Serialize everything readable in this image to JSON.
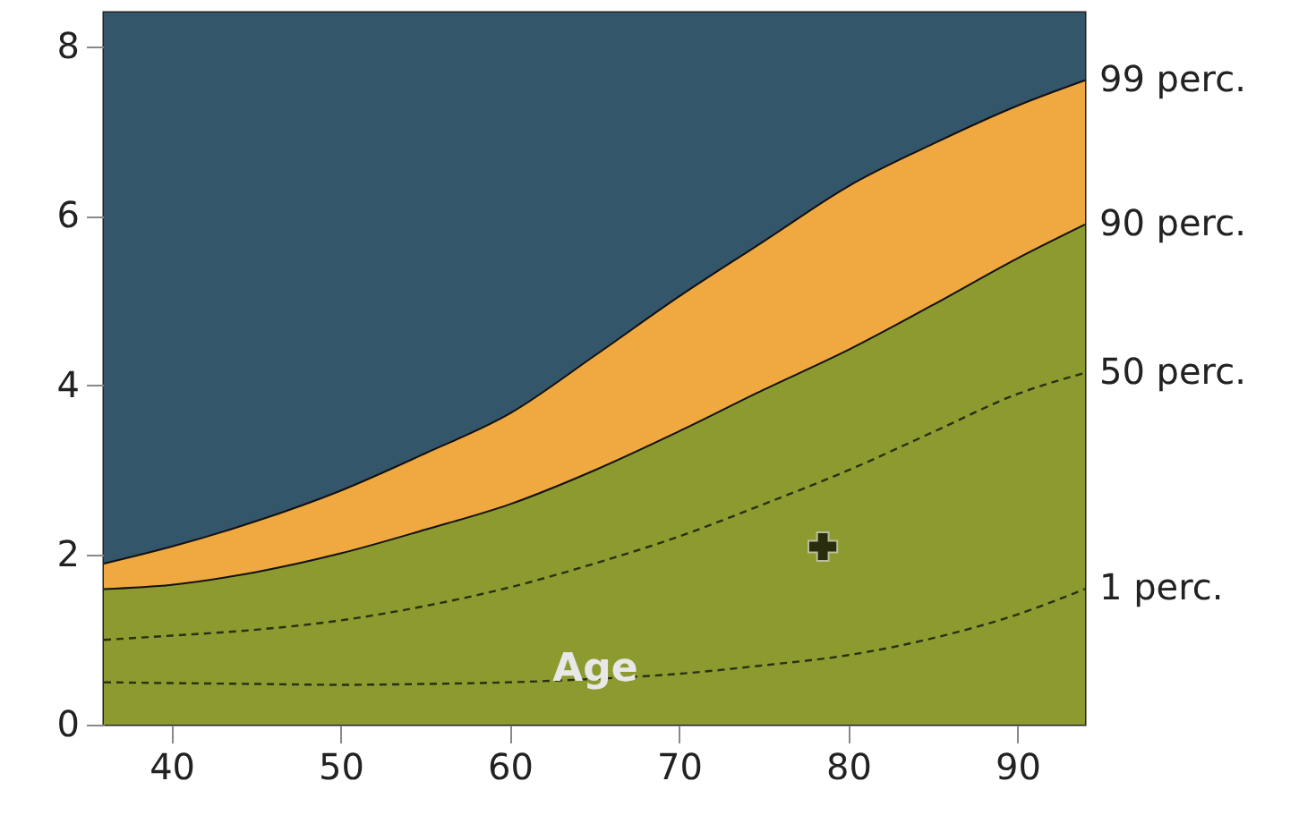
{
  "chart_data": {
    "type": "area",
    "xlabel": "Age",
    "x": [
      36,
      40,
      45,
      50,
      55,
      60,
      65,
      70,
      75,
      80,
      85,
      90,
      94
    ],
    "xlim": [
      36,
      94
    ],
    "ylim": [
      0,
      8.4
    ],
    "xticks": [
      40,
      50,
      60,
      70,
      80,
      90
    ],
    "yticks": [
      0,
      2,
      4,
      6,
      8
    ],
    "grid": false,
    "legend": false,
    "bands": [
      {
        "axis": "y",
        "from": 0,
        "to": 8.4,
        "color": "#33566b"
      }
    ],
    "series": [
      {
        "name": "99 perc.",
        "color": "#f0a840",
        "values": [
          1.9,
          2.1,
          2.4,
          2.76,
          3.2,
          3.67,
          4.35,
          5.05,
          5.7,
          6.35,
          6.85,
          7.3,
          7.6
        ]
      },
      {
        "name": "90 perc.",
        "color": "#8c9a30",
        "values": [
          1.6,
          1.65,
          1.8,
          2.02,
          2.3,
          2.6,
          3.0,
          3.46,
          3.95,
          4.42,
          4.95,
          5.5,
          5.9
        ]
      },
      {
        "name": "50 perc.",
        "type": "line",
        "line_style": "dashed",
        "color": "#2a3010",
        "values": [
          1.0,
          1.05,
          1.12,
          1.23,
          1.4,
          1.62,
          1.9,
          2.22,
          2.6,
          3.0,
          3.45,
          3.9,
          4.15
        ]
      },
      {
        "name": "1 perc.",
        "type": "line",
        "line_style": "dashed",
        "color": "#2a3010",
        "values": [
          0.5,
          0.49,
          0.48,
          0.47,
          0.48,
          0.5,
          0.54,
          0.6,
          0.7,
          0.82,
          1.02,
          1.3,
          1.6
        ]
      },
      {
        "type": "scatter",
        "marker": "cross",
        "color": "#000000",
        "x": [
          78.5
        ],
        "values": [
          2.1
        ]
      }
    ]
  }
}
